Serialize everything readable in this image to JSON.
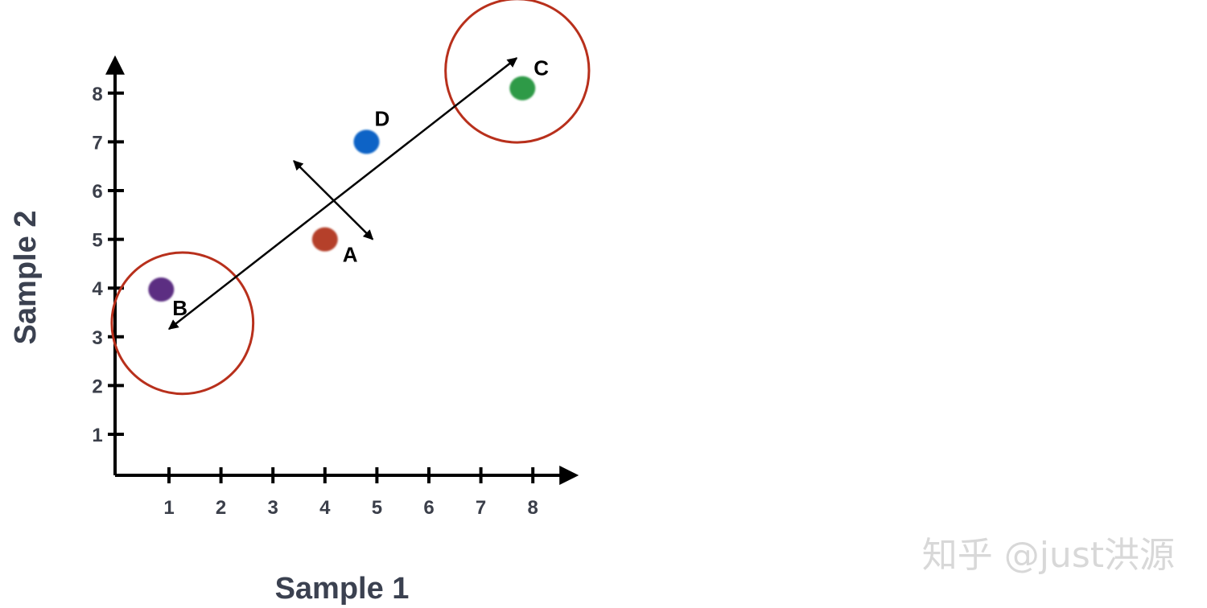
{
  "chart_data": {
    "type": "scatter",
    "xlabel": "Sample 1",
    "ylabel": "Sample 2",
    "xticks": [
      1,
      2,
      3,
      4,
      5,
      6,
      7,
      8
    ],
    "yticks": [
      1,
      2,
      3,
      4,
      5,
      6,
      7,
      8
    ],
    "grid": false,
    "points": [
      {
        "label": "B",
        "x": 0.85,
        "y": 3.97,
        "color": "#5b2d82"
      },
      {
        "label": "A",
        "x": 4.0,
        "y": 5.0,
        "color": "#b5402c"
      },
      {
        "label": "D",
        "x": 4.8,
        "y": 7.0,
        "color": "#0a63c6"
      },
      {
        "label": "C",
        "x": 7.8,
        "y": 8.1,
        "color": "#2e9a47"
      }
    ],
    "circles": [
      {
        "cx": 1.26,
        "cy": 3.28,
        "r": 1.36,
        "color": "#b8301c"
      },
      {
        "cx": 7.7,
        "cy": 8.46,
        "r": 1.38,
        "color": "#b8301c"
      }
    ],
    "arrows": [
      {
        "from": [
          1.0,
          3.16
        ],
        "to": [
          7.69,
          8.72
        ],
        "both_ends": true
      },
      {
        "from": [
          3.4,
          6.61
        ],
        "to": [
          4.92,
          5.0
        ],
        "both_ends": true
      }
    ]
  },
  "watermark": "知乎 @just洪源"
}
